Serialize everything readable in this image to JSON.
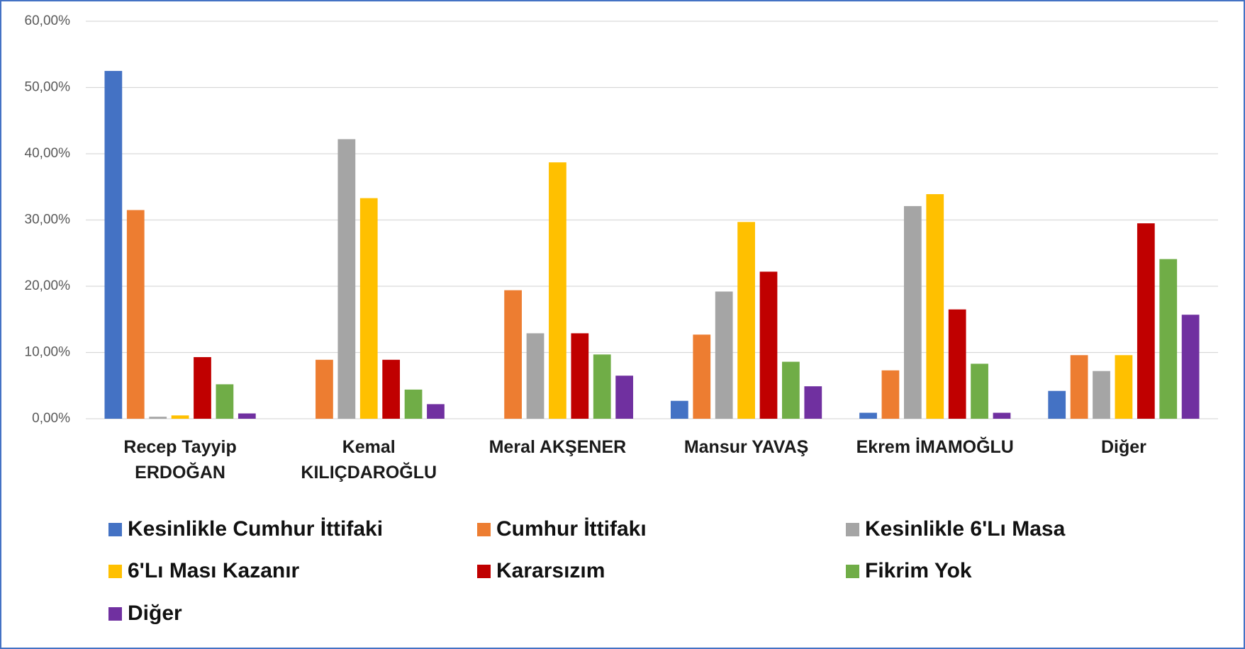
{
  "chart_data": {
    "type": "bar",
    "categories": [
      "Recep Tayyip ERDOĞAN",
      "Kemal KILIÇDAROĞLU",
      "Meral AKŞENER",
      "Mansur YAVAŞ",
      "Ekrem İMAMOĞLU",
      "Diğer"
    ],
    "series": [
      {
        "name": "Kesinlikle Cumhur İttifaki",
        "color": "#4472c4",
        "values": [
          52.5,
          0,
          0,
          2.7,
          0.9,
          4.2
        ]
      },
      {
        "name": "Cumhur İttifakı",
        "color": "#ed7d31",
        "values": [
          31.5,
          8.9,
          19.4,
          12.7,
          7.3,
          9.6
        ]
      },
      {
        "name": "Kesinlikle 6'Lı Masa",
        "color": "#a5a5a5",
        "values": [
          0.3,
          42.2,
          12.9,
          19.2,
          32.1,
          7.2
        ]
      },
      {
        "name": "6'Lı Ması Kazanır",
        "color": "#ffc000",
        "values": [
          0.5,
          33.3,
          38.7,
          29.7,
          33.9,
          9.6
        ]
      },
      {
        "name": "Kararsızım",
        "color": "#c00000",
        "values": [
          9.3,
          8.9,
          12.9,
          22.2,
          16.5,
          29.5
        ]
      },
      {
        "name": "Fikrim Yok",
        "color": "#70ad47",
        "values": [
          5.2,
          4.4,
          9.7,
          8.6,
          8.3,
          24.1
        ]
      },
      {
        "name": "Diğer",
        "color": "#7030a0",
        "values": [
          0.8,
          2.2,
          6.5,
          4.9,
          0.9,
          15.7
        ]
      }
    ],
    "ylim": [
      0,
      60
    ],
    "yticks": [
      {
        "value": 0,
        "label": "0,00%"
      },
      {
        "value": 10,
        "label": "10,00%"
      },
      {
        "value": 20,
        "label": "20,00%"
      },
      {
        "value": 30,
        "label": "30,00%"
      },
      {
        "value": 40,
        "label": "40,00%"
      },
      {
        "value": 50,
        "label": "50,00%"
      },
      {
        "value": 60,
        "label": "60,00%"
      }
    ],
    "grid": true,
    "legend": "bottom"
  }
}
